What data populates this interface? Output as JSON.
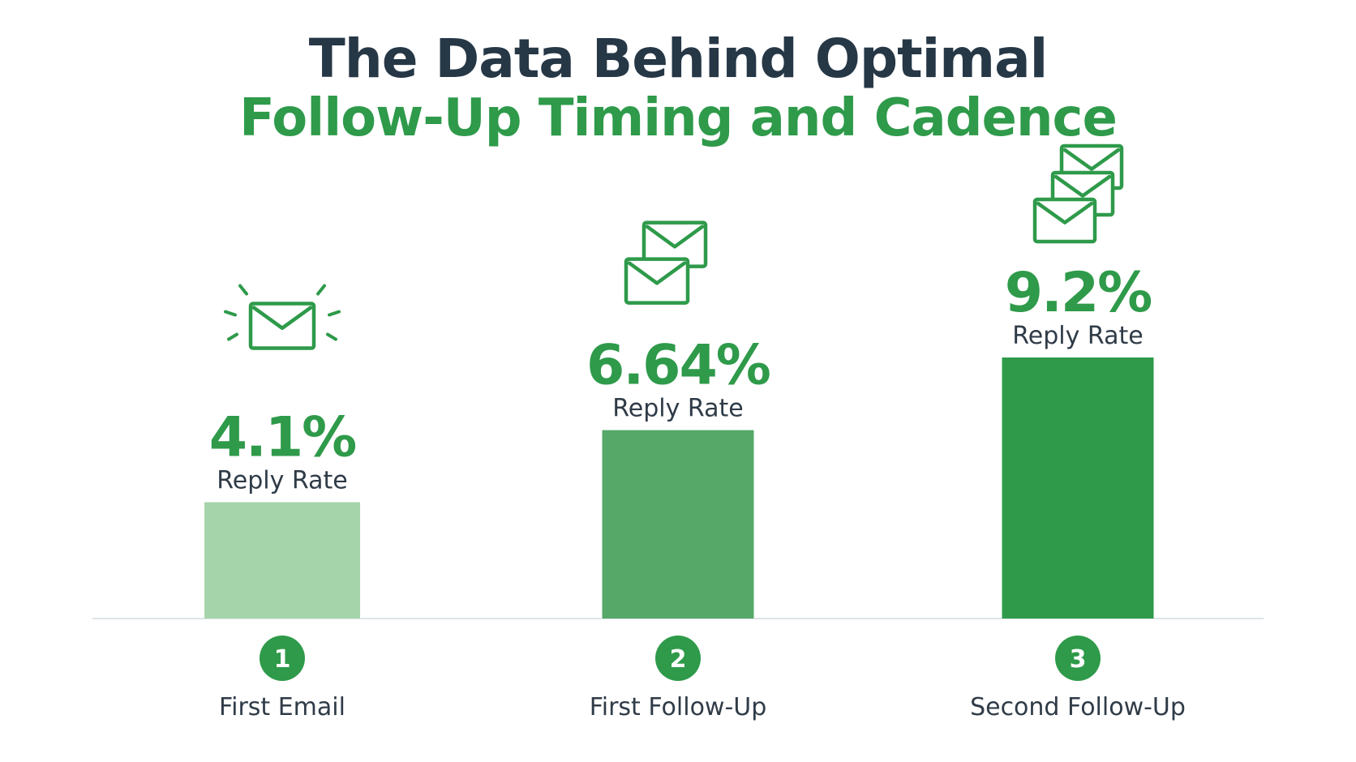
{
  "title": "The Data Behind Optimal",
  "subtitle": "Follow-Up Timing and Cadence",
  "colors": {
    "title": "#263746",
    "accent": "#2e9a4a",
    "text": "#2f3b47",
    "baseline": "#dde6e8",
    "bars": [
      "#a6d4aa",
      "#55a868",
      "#2e9a4a"
    ]
  },
  "chart_data": {
    "type": "bar",
    "title": "The Data Behind Optimal",
    "subtitle": "Follow-Up Timing and Cadence",
    "categories": [
      "First Email",
      "First Follow-Up",
      "Second Follow-Up"
    ],
    "values": [
      4.1,
      6.64,
      9.2
    ],
    "value_labels": [
      "4.1%",
      "6.64%",
      "9.2%"
    ],
    "value_caption": "Reply Rate",
    "step_numbers": [
      "1",
      "2",
      "3"
    ],
    "icons": [
      "envelope-burst-icon",
      "double-envelope-icon",
      "triple-envelope-icon"
    ],
    "ylim": [
      0,
      12
    ],
    "grid": false,
    "legend": "none"
  }
}
